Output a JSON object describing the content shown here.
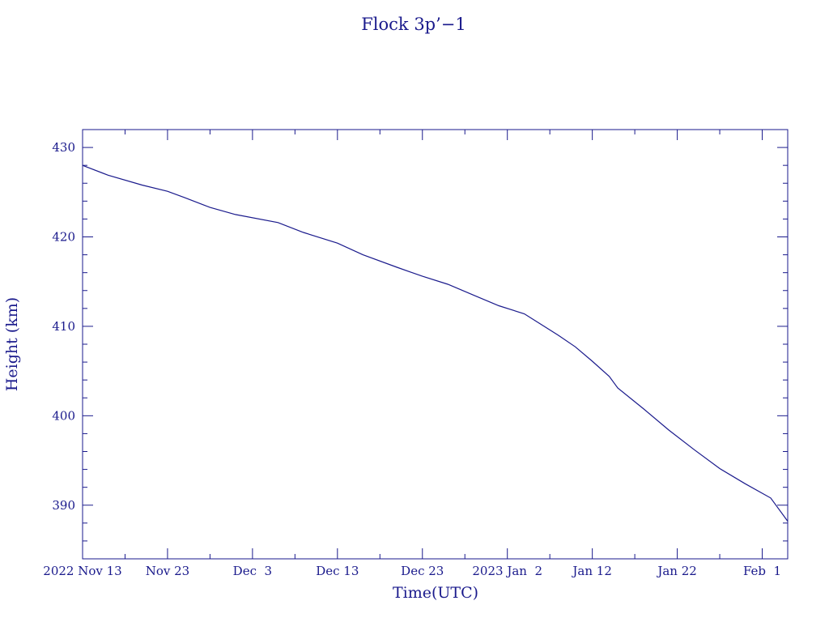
{
  "chart_data": {
    "type": "line",
    "title": "Flock 3p’−1",
    "xlabel": "Time(UTC)",
    "ylabel": "Height (km)",
    "x_range": [
      "2022-11-13",
      "2023-02-04"
    ],
    "ylim": [
      384,
      432
    ],
    "x_tick_labels": [
      {
        "date": "2022-11-13",
        "label": "2022 Nov 13"
      },
      {
        "date": "2022-11-23",
        "label": "Nov 23"
      },
      {
        "date": "2022-12-03",
        "label": "Dec  3"
      },
      {
        "date": "2022-12-13",
        "label": "Dec 13"
      },
      {
        "date": "2022-12-23",
        "label": "Dec 23"
      },
      {
        "date": "2023-01-02",
        "label": "2023 Jan  2"
      },
      {
        "date": "2023-01-12",
        "label": "Jan 12"
      },
      {
        "date": "2023-01-22",
        "label": "Jan 22"
      },
      {
        "date": "2023-02-01",
        "label": "Feb  1"
      }
    ],
    "y_ticks": [
      390,
      400,
      410,
      420,
      430
    ],
    "grid": false,
    "series": [
      {
        "color": "#1a1a8c",
        "points": [
          {
            "x": "2022-11-13",
            "y": 428.0
          },
          {
            "x": "2022-11-16",
            "y": 426.9
          },
          {
            "x": "2022-11-20",
            "y": 425.8
          },
          {
            "x": "2022-11-23",
            "y": 425.1
          },
          {
            "x": "2022-11-25",
            "y": 424.4
          },
          {
            "x": "2022-11-28",
            "y": 423.3
          },
          {
            "x": "2022-12-01",
            "y": 422.5
          },
          {
            "x": "2022-12-06",
            "y": 421.6
          },
          {
            "x": "2022-12-09",
            "y": 420.5
          },
          {
            "x": "2022-12-13",
            "y": 419.3
          },
          {
            "x": "2022-12-16",
            "y": 418.0
          },
          {
            "x": "2022-12-20",
            "y": 416.6
          },
          {
            "x": "2022-12-23",
            "y": 415.6
          },
          {
            "x": "2022-12-26",
            "y": 414.7
          },
          {
            "x": "2022-12-29",
            "y": 413.5
          },
          {
            "x": "2023-01-01",
            "y": 412.3
          },
          {
            "x": "2023-01-04",
            "y": 411.4
          },
          {
            "x": "2023-01-06",
            "y": 410.2
          },
          {
            "x": "2023-01-08",
            "y": 409.0
          },
          {
            "x": "2023-01-10",
            "y": 407.7
          },
          {
            "x": "2023-01-12",
            "y": 406.1
          },
          {
            "x": "2023-01-14",
            "y": 404.4
          },
          {
            "x": "2023-01-15",
            "y": 403.1
          },
          {
            "x": "2023-01-18",
            "y": 400.8
          },
          {
            "x": "2023-01-21",
            "y": 398.4
          },
          {
            "x": "2023-01-24",
            "y": 396.2
          },
          {
            "x": "2023-01-27",
            "y": 394.1
          },
          {
            "x": "2023-01-30",
            "y": 392.4
          },
          {
            "x": "2023-02-02",
            "y": 390.8
          },
          {
            "x": "2023-02-04",
            "y": 388.2
          }
        ]
      }
    ]
  }
}
